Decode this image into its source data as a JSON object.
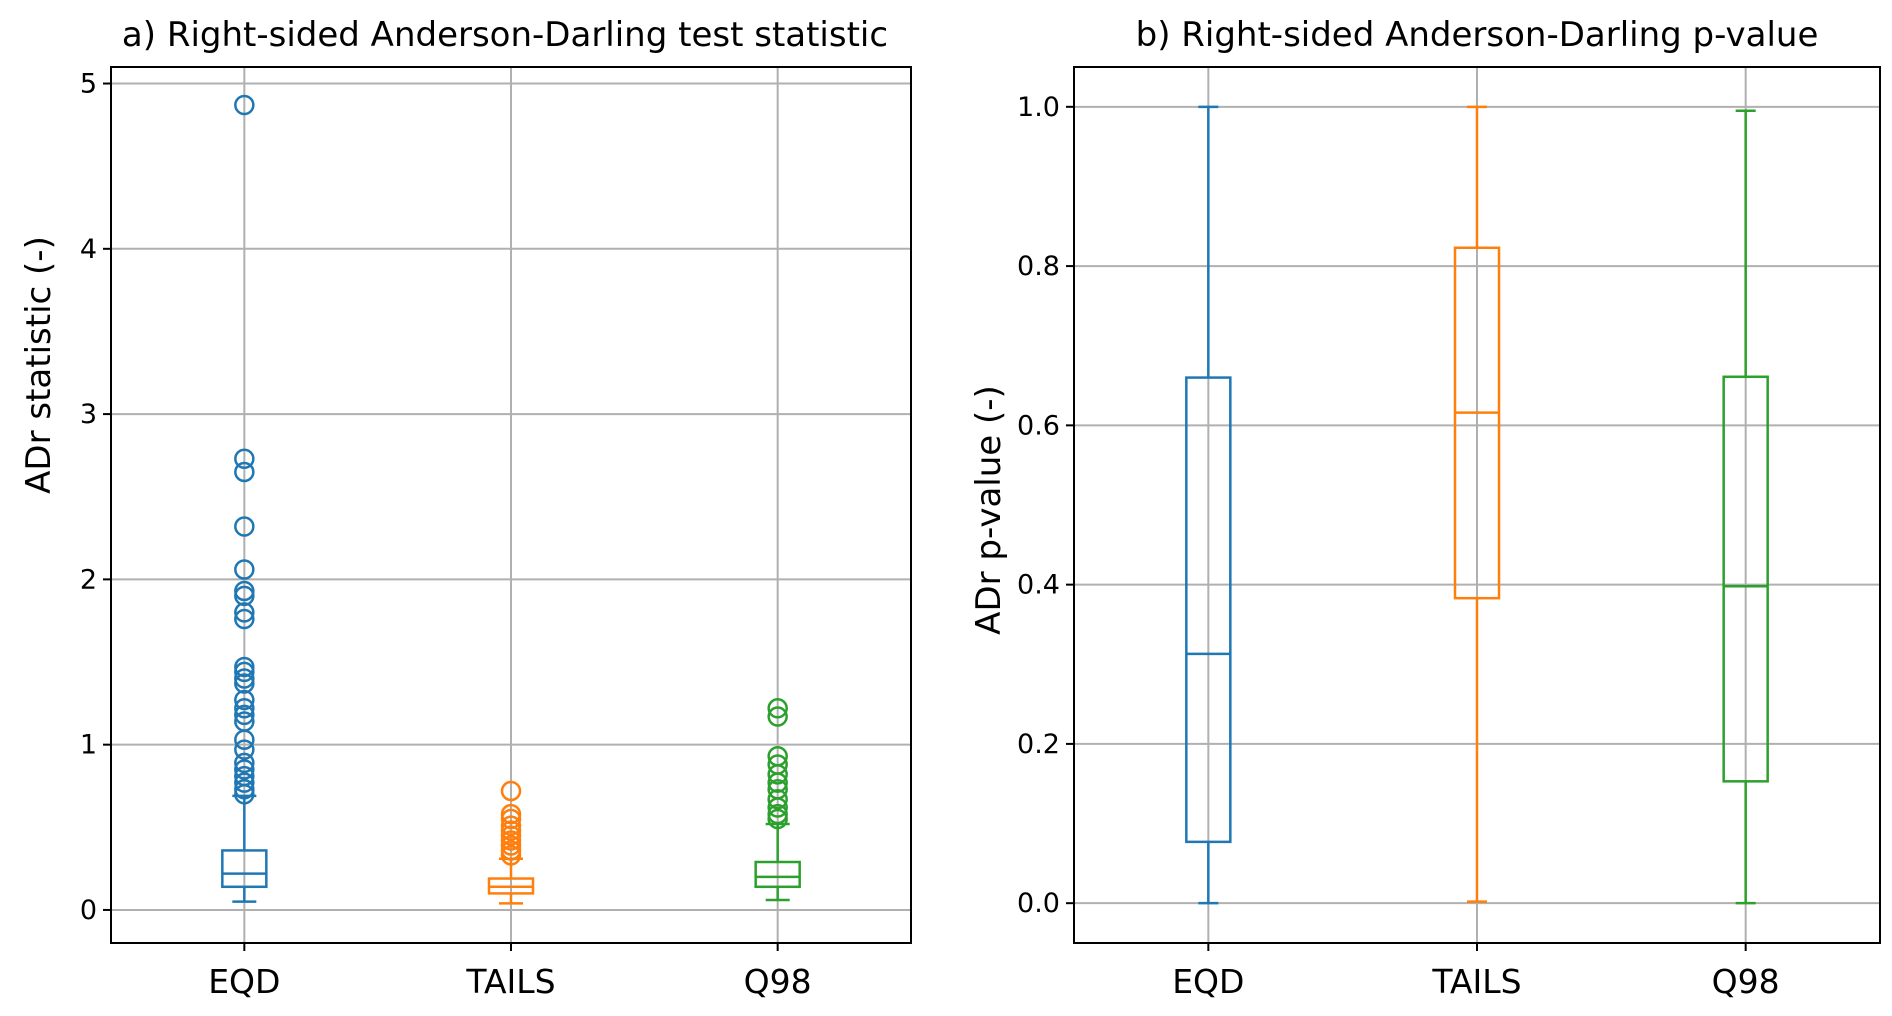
{
  "chart_data": [
    {
      "type": "boxplot",
      "title": "a) Right-sided Anderson-Darling test statistic",
      "ylabel": "ADr statistic (-)",
      "ylim": [
        -0.2,
        5.1
      ],
      "yticks": [
        0,
        1,
        2,
        3,
        4,
        5
      ],
      "ytick_labels": [
        "0",
        "1",
        "2",
        "3",
        "4",
        "5"
      ],
      "grid": true,
      "categories": [
        "EQD",
        "TAILS",
        "Q98"
      ],
      "colors": [
        "#1f77b4",
        "#ff7f0e",
        "#2ca02c"
      ],
      "boxes": [
        {
          "whisker_low": 0.05,
          "q1": 0.14,
          "median": 0.22,
          "q3": 0.36,
          "whisker_high": 0.69,
          "outliers": [
            4.87,
            2.73,
            2.65,
            2.32,
            2.06,
            1.93,
            1.9,
            1.8,
            1.76,
            1.47,
            1.44,
            1.4,
            1.37,
            1.27,
            1.22,
            1.18,
            1.14,
            1.03,
            0.97,
            0.89,
            0.85,
            0.81,
            0.77,
            0.73,
            0.7
          ]
        },
        {
          "whisker_low": 0.04,
          "q1": 0.1,
          "median": 0.14,
          "q3": 0.19,
          "whisker_high": 0.31,
          "outliers": [
            0.72,
            0.58,
            0.55,
            0.51,
            0.48,
            0.45,
            0.42,
            0.39,
            0.36,
            0.33
          ]
        },
        {
          "whisker_low": 0.06,
          "q1": 0.14,
          "median": 0.2,
          "q3": 0.29,
          "whisker_high": 0.52,
          "outliers": [
            1.22,
            1.17,
            0.93,
            0.88,
            0.82,
            0.77,
            0.73,
            0.67,
            0.62,
            0.58,
            0.55
          ]
        }
      ]
    },
    {
      "type": "boxplot",
      "title": "b) Right-sided Anderson-Darling p-value",
      "ylabel": "ADr p-value (-)",
      "ylim": [
        -0.05,
        1.05
      ],
      "yticks": [
        0.0,
        0.2,
        0.4,
        0.6,
        0.8,
        1.0
      ],
      "ytick_labels": [
        "0.0",
        "0.2",
        "0.4",
        "0.6",
        "0.8",
        "1.0"
      ],
      "grid": true,
      "categories": [
        "EQD",
        "TAILS",
        "Q98"
      ],
      "colors": [
        "#1f77b4",
        "#ff7f0e",
        "#2ca02c"
      ],
      "boxes": [
        {
          "whisker_low": 0.0,
          "q1": 0.077,
          "median": 0.313,
          "q3": 0.66,
          "whisker_high": 1.0,
          "outliers": []
        },
        {
          "whisker_low": 0.002,
          "q1": 0.383,
          "median": 0.616,
          "q3": 0.823,
          "whisker_high": 1.0,
          "outliers": []
        },
        {
          "whisker_low": 0.0,
          "q1": 0.153,
          "median": 0.398,
          "q3": 0.661,
          "whisker_high": 0.995,
          "outliers": []
        }
      ]
    }
  ]
}
